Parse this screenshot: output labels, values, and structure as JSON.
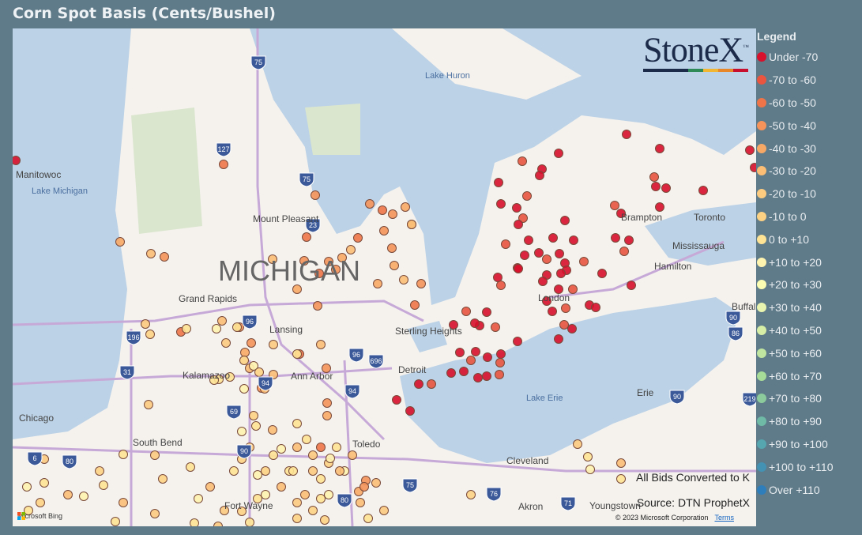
{
  "title": "Corn Spot Basis (Cents/Bushel)",
  "logo": {
    "text": "StoneX",
    "trademark": "™",
    "bar_colors": [
      "#1c2b4a",
      "#1c2b4a",
      "#1c2b4a",
      "#2e8b57",
      "#f2b632",
      "#e8862a",
      "#c8102e"
    ]
  },
  "legend": {
    "title": "Legend",
    "items": [
      {
        "label": "Under -70",
        "color": "#d7102b"
      },
      {
        "label": "-70 to -60",
        "color": "#e9553f"
      },
      {
        "label": "-60 to -50",
        "color": "#ef7548"
      },
      {
        "label": "-50 to -40",
        "color": "#f5935a"
      },
      {
        "label": "-40 to -30",
        "color": "#f8a865"
      },
      {
        "label": "-30 to -20",
        "color": "#fbbe74"
      },
      {
        "label": "-20 to -10",
        "color": "#fccb80"
      },
      {
        "label": "-10 to 0",
        "color": "#fdd184"
      },
      {
        "label": "0 to +10",
        "color": "#fee394"
      },
      {
        "label": "+10 to +20",
        "color": "#fff3b0"
      },
      {
        "label": "+20 to +30",
        "color": "#fbfdb3"
      },
      {
        "label": "+30 to +40",
        "color": "#e9f5ae"
      },
      {
        "label": "+40 to +50",
        "color": "#d6eea6"
      },
      {
        "label": "+50 to +60",
        "color": "#bfe5a0"
      },
      {
        "label": "+60 to +70",
        "color": "#a7db98"
      },
      {
        "label": "+70 to +80",
        "color": "#8ccc9c"
      },
      {
        "label": "+80 to +90",
        "color": "#6fbaa6"
      },
      {
        "label": "+90 to +100",
        "color": "#55a6ae"
      },
      {
        "label": "+100 to +110",
        "color": "#4392b4"
      },
      {
        "label": "Over +110",
        "color": "#2f7ebc"
      }
    ]
  },
  "notes": {
    "conversion": "All Bids Converted to K",
    "source": "Source: DTN ProphetX"
  },
  "map": {
    "attribution": "Microsoft Bing",
    "copyright": "© 2023 Microsoft Corporation",
    "terms": "Terms",
    "labels": {
      "state": "MICHIGAN",
      "lake_huron": "Lake Huron",
      "lake_michigan": "Lake Michigan",
      "lake_erie": "Lake Erie",
      "cities": [
        "Manitowoc",
        "Mount Pleasant",
        "Grand Rapids",
        "Lansing",
        "Kalamazoo",
        "Ann Arbor",
        "Sterling Heights",
        "Detroit",
        "Toledo",
        "Chicago",
        "South Bend",
        "Fort Wayne",
        "Cleveland",
        "Akron",
        "Youngstown",
        "Erie",
        "London",
        "Hamilton",
        "Mississauga",
        "Toronto",
        "Brampton",
        "Buffalo"
      ],
      "highways": [
        "75",
        "127",
        "75",
        "23",
        "96",
        "196",
        "96",
        "696",
        "94",
        "94",
        "69",
        "31",
        "90",
        "80",
        "80",
        "75",
        "76",
        "71",
        "90",
        "86",
        "219",
        "6",
        "90"
      ]
    }
  }
}
